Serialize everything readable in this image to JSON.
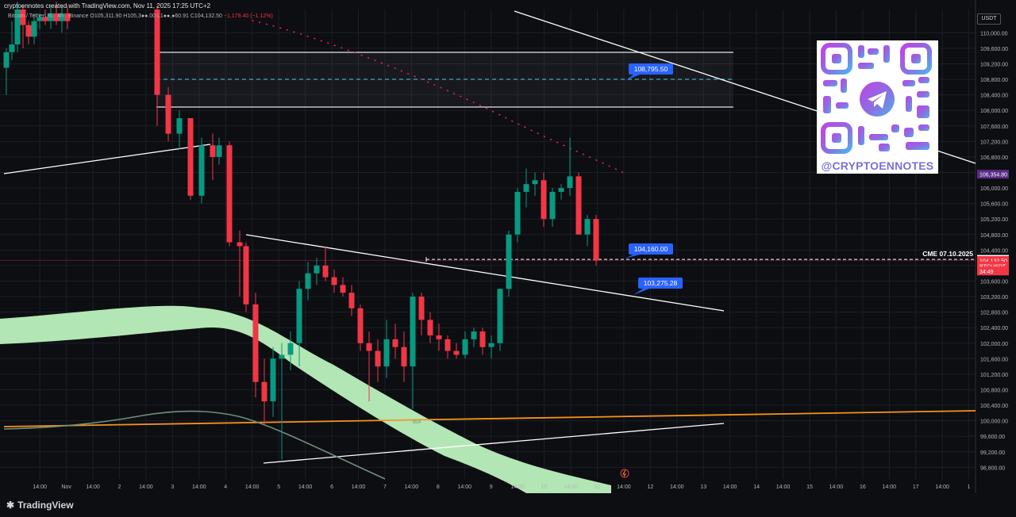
{
  "header": {
    "caption": "cryptoennotes created with TradingView.com, Nov 11, 2025 17:25 UTC+2",
    "symbol_line": "Bitcoin / TetherUS · 4h · Binance",
    "ohlc_text": "O105,311.90 H105,3●●.00 L1●●,●60.91 C104,132.50",
    "change_text": "−1,179.40 (−1.12%)",
    "currency": "USDT"
  },
  "footer": {
    "brand": "TradingView",
    "brand_icon": "tradingview-logo-icon"
  },
  "watermark": {
    "text": "@CRYPTOENNOTES",
    "kind": "qr-code-telegram-logo"
  },
  "annotations": {
    "label_upper": "108,795.50",
    "label_current": "104,160.00",
    "label_lower": "103,275.28",
    "cme_text": "CME 07.10.2025",
    "bull_text": "Bull"
  },
  "colors": {
    "up": "#089981",
    "down": "#f23645",
    "grid": "#1c1f27",
    "cloud": "#b3e6b5",
    "orange": "#f7931a",
    "dotted": "#e91e63",
    "label_blue": "#2962ff",
    "purple_badge": "#5b2c86"
  },
  "chart_data": {
    "type": "candlestick",
    "title": "Bitcoin / TetherUS · 4h · Binance",
    "y_range": [
      98500,
      110600
    ],
    "y_ticks": [
      110000,
      109600,
      109200,
      108800,
      108400,
      108000,
      107600,
      107200,
      106800,
      106400,
      106000,
      105600,
      105200,
      104800,
      104400,
      104000,
      103600,
      103200,
      102800,
      102400,
      102000,
      101600,
      101200,
      100800,
      100400,
      100000,
      99600,
      99200,
      98800
    ],
    "price_badges": [
      {
        "label": "106,354.80",
        "value": 106354.8,
        "color": "#5b2c86"
      },
      {
        "label": "104,160.00",
        "value": 104160,
        "color": "#ffffff"
      },
      {
        "label": "104,132.50",
        "value": 104132.5,
        "color": "#f23645"
      },
      {
        "label": "BTCUSDT",
        "value": 103990,
        "color": "#f23645"
      },
      {
        "label": "34:49",
        "value": 103860,
        "color": "#f23645"
      }
    ],
    "x_ticks": [
      {
        "label": "14:00",
        "i": 2
      },
      {
        "label": "Nov",
        "i": 4
      },
      {
        "label": "14:00",
        "i": 6
      },
      {
        "label": "2",
        "i": 8
      },
      {
        "label": "14:00",
        "i": 10
      },
      {
        "label": "3",
        "i": 12
      },
      {
        "label": "14:00",
        "i": 14
      },
      {
        "label": "4",
        "i": 16
      },
      {
        "label": "14:00",
        "i": 18
      },
      {
        "label": "5",
        "i": 20
      },
      {
        "label": "14:00",
        "i": 22
      },
      {
        "label": "6",
        "i": 24
      },
      {
        "label": "14:00",
        "i": 26
      },
      {
        "label": "7",
        "i": 28
      },
      {
        "label": "14:00",
        "i": 30
      },
      {
        "label": "8",
        "i": 32
      },
      {
        "label": "14:00",
        "i": 34
      },
      {
        "label": "9",
        "i": 36
      },
      {
        "label": "14:00",
        "i": 38
      },
      {
        "label": "10",
        "i": 40
      },
      {
        "label": "14:00",
        "i": 42
      },
      {
        "label": "11",
        "i": 44
      },
      {
        "label": "14:00",
        "i": 46
      },
      {
        "label": "12",
        "i": 48
      },
      {
        "label": "14:00",
        "i": 50
      },
      {
        "label": "13",
        "i": 52
      },
      {
        "label": "14:00",
        "i": 54
      },
      {
        "label": "14",
        "i": 56
      },
      {
        "label": "14:00",
        "i": 58
      },
      {
        "label": "15",
        "i": 60
      },
      {
        "label": "14:00",
        "i": 62
      },
      {
        "label": "16",
        "i": 64
      },
      {
        "label": "14:00",
        "i": 66
      },
      {
        "label": "17",
        "i": 68
      },
      {
        "label": "14:00",
        "i": 70
      },
      {
        "label": "1",
        "i": 72
      }
    ],
    "candles": [
      {
        "i": 0,
        "o": 109100,
        "h": 109600,
        "l": 108400,
        "c": 109500
      },
      {
        "i": 1,
        "o": 109500,
        "h": 110300,
        "l": 109300,
        "c": 109700
      },
      {
        "i": 2,
        "o": 109700,
        "h": 110800,
        "l": 109500,
        "c": 110600
      },
      {
        "i": 3,
        "o": 110600,
        "h": 110700,
        "l": 109600,
        "c": 110200
      },
      {
        "i": 4,
        "o": 110200,
        "h": 110300,
        "l": 109700,
        "c": 109900
      },
      {
        "i": 5,
        "o": 109900,
        "h": 110500,
        "l": 109700,
        "c": 110300
      },
      {
        "i": 6,
        "o": 110300,
        "h": 110500,
        "l": 110100,
        "c": 110400
      },
      {
        "i": 7,
        "o": 110400,
        "h": 110600,
        "l": 110200,
        "c": 110300
      },
      {
        "i": 8,
        "o": 110300,
        "h": 110700,
        "l": 110100,
        "c": 110500
      },
      {
        "i": 9,
        "o": 110500,
        "h": 110800,
        "l": 110200,
        "c": 110300
      },
      {
        "i": 10,
        "o": 110300,
        "h": 110700,
        "l": 110000,
        "c": 110500
      },
      {
        "i": 11,
        "o": 110500,
        "h": 110700,
        "l": 110100,
        "c": 110300
      },
      {
        "i": 12,
        "o": 110600,
        "h": 110700,
        "l": 107600,
        "c": 108400
      },
      {
        "i": 13,
        "o": 108400,
        "h": 108600,
        "l": 107200,
        "c": 107400
      },
      {
        "i": 14,
        "o": 107400,
        "h": 108000,
        "l": 107000,
        "c": 107800
      },
      {
        "i": 15,
        "o": 107800,
        "h": 107800,
        "l": 105700,
        "c": 105800
      },
      {
        "i": 16,
        "o": 105800,
        "h": 107300,
        "l": 105600,
        "c": 107100
      },
      {
        "i": 17,
        "o": 107100,
        "h": 107400,
        "l": 106200,
        "c": 106800
      },
      {
        "i": 18,
        "o": 106800,
        "h": 107300,
        "l": 106600,
        "c": 107100
      },
      {
        "i": 19,
        "o": 107100,
        "h": 107200,
        "l": 104500,
        "c": 104600
      },
      {
        "i": 20,
        "o": 104600,
        "h": 104900,
        "l": 103200,
        "c": 104500
      },
      {
        "i": 21,
        "o": 104500,
        "h": 104600,
        "l": 102800,
        "c": 103000
      },
      {
        "i": 22,
        "o": 103000,
        "h": 103300,
        "l": 100600,
        "c": 101000
      },
      {
        "i": 23,
        "o": 101000,
        "h": 101600,
        "l": 99900,
        "c": 100500
      },
      {
        "i": 24,
        "o": 100500,
        "h": 101900,
        "l": 100100,
        "c": 101600
      },
      {
        "i": 25,
        "o": 101600,
        "h": 102000,
        "l": 99000,
        "c": 101700
      },
      {
        "i": 26,
        "o": 101700,
        "h": 102300,
        "l": 101300,
        "c": 102000
      },
      {
        "i": 27,
        "o": 102000,
        "h": 103600,
        "l": 101400,
        "c": 103400
      },
      {
        "i": 28,
        "o": 103400,
        "h": 104100,
        "l": 103100,
        "c": 103800
      },
      {
        "i": 29,
        "o": 103800,
        "h": 104200,
        "l": 103500,
        "c": 104000
      },
      {
        "i": 30,
        "o": 104000,
        "h": 104500,
        "l": 103600,
        "c": 103700
      },
      {
        "i": 31,
        "o": 103700,
        "h": 103900,
        "l": 103300,
        "c": 103500
      },
      {
        "i": 32,
        "o": 103500,
        "h": 103700,
        "l": 103200,
        "c": 103300
      },
      {
        "i": 33,
        "o": 103300,
        "h": 103500,
        "l": 102700,
        "c": 102900
      },
      {
        "i": 34,
        "o": 102900,
        "h": 103000,
        "l": 101800,
        "c": 102000
      },
      {
        "i": 35,
        "o": 102000,
        "h": 102300,
        "l": 100500,
        "c": 101800
      },
      {
        "i": 36,
        "o": 101800,
        "h": 102100,
        "l": 101000,
        "c": 101400
      },
      {
        "i": 37,
        "o": 101400,
        "h": 102600,
        "l": 101100,
        "c": 102100
      },
      {
        "i": 38,
        "o": 102100,
        "h": 102500,
        "l": 101600,
        "c": 101900
      },
      {
        "i": 39,
        "o": 101900,
        "h": 102300,
        "l": 101000,
        "c": 101400
      },
      {
        "i": 40,
        "o": 101400,
        "h": 103300,
        "l": 100300,
        "c": 103200
      },
      {
        "i": 41,
        "o": 103200,
        "h": 103300,
        "l": 102200,
        "c": 102600
      },
      {
        "i": 42,
        "o": 102600,
        "h": 102800,
        "l": 102000,
        "c": 102200
      },
      {
        "i": 43,
        "o": 102200,
        "h": 102500,
        "l": 101800,
        "c": 102100
      },
      {
        "i": 44,
        "o": 102100,
        "h": 102200,
        "l": 101600,
        "c": 101800
      },
      {
        "i": 45,
        "o": 101800,
        "h": 102000,
        "l": 101600,
        "c": 101700
      },
      {
        "i": 46,
        "o": 101700,
        "h": 102300,
        "l": 101600,
        "c": 102100
      },
      {
        "i": 47,
        "o": 102100,
        "h": 102400,
        "l": 101900,
        "c": 102300
      },
      {
        "i": 48,
        "o": 102300,
        "h": 102400,
        "l": 101700,
        "c": 101900
      },
      {
        "i": 49,
        "o": 101900,
        "h": 102200,
        "l": 101600,
        "c": 102000
      },
      {
        "i": 50,
        "o": 102000,
        "h": 103400,
        "l": 101800,
        "c": 103400
      },
      {
        "i": 51,
        "o": 103400,
        "h": 104900,
        "l": 103200,
        "c": 104800
      },
      {
        "i": 52,
        "o": 104800,
        "h": 106000,
        "l": 104600,
        "c": 105900
      },
      {
        "i": 53,
        "o": 105900,
        "h": 106500,
        "l": 105500,
        "c": 106100
      },
      {
        "i": 54,
        "o": 106100,
        "h": 106400,
        "l": 105800,
        "c": 106200
      },
      {
        "i": 55,
        "o": 106200,
        "h": 106400,
        "l": 105000,
        "c": 105200
      },
      {
        "i": 56,
        "o": 105200,
        "h": 106000,
        "l": 105000,
        "c": 105900
      },
      {
        "i": 57,
        "o": 105900,
        "h": 106100,
        "l": 105700,
        "c": 106000
      },
      {
        "i": 58,
        "o": 106000,
        "h": 107300,
        "l": 105800,
        "c": 106300
      },
      {
        "i": 59,
        "o": 106300,
        "h": 106400,
        "l": 104800,
        "c": 104800
      },
      {
        "i": 60,
        "o": 104800,
        "h": 105300,
        "l": 104500,
        "c": 105200
      },
      {
        "i": 61,
        "o": 105200,
        "h": 105300,
        "l": 104000,
        "c": 104130
      }
    ],
    "candle_index_range": [
      -1,
      72.5
    ],
    "candle_x_override": [
      [
        0,
        8
      ],
      [
        1,
        15
      ],
      [
        2,
        22
      ],
      [
        3,
        29
      ],
      [
        4,
        36
      ],
      [
        5,
        43
      ],
      [
        6,
        50
      ],
      [
        7,
        57
      ],
      [
        8,
        64
      ],
      [
        9,
        71
      ],
      [
        10,
        78
      ],
      [
        11,
        85
      ],
      [
        12,
        198
      ],
      [
        13,
        212
      ],
      [
        14,
        226
      ],
      [
        15,
        240
      ],
      [
        16,
        254
      ],
      [
        17,
        268
      ],
      [
        18,
        276
      ],
      [
        19,
        289
      ],
      [
        20,
        302
      ],
      [
        21,
        310
      ],
      [
        22,
        322
      ],
      [
        23,
        333
      ],
      [
        24,
        344
      ],
      [
        25,
        355
      ],
      [
        26,
        366
      ],
      [
        27,
        377
      ],
      [
        28,
        388
      ],
      [
        29,
        399
      ],
      [
        30,
        410
      ],
      [
        31,
        421
      ],
      [
        32,
        432
      ],
      [
        33,
        443
      ],
      [
        34,
        454
      ],
      [
        35,
        465
      ],
      [
        36,
        476
      ],
      [
        37,
        487
      ],
      [
        38,
        498
      ],
      [
        39,
        509
      ],
      [
        40,
        520
      ],
      [
        41,
        531
      ],
      [
        42,
        542
      ],
      [
        43,
        553
      ],
      [
        44,
        564
      ],
      [
        45,
        575
      ],
      [
        46,
        586
      ],
      [
        47,
        597
      ],
      [
        48,
        608
      ],
      [
        49,
        619
      ],
      [
        50,
        630
      ],
      [
        51,
        641
      ],
      [
        52,
        652
      ],
      [
        53,
        663
      ],
      [
        54,
        674
      ],
      [
        55,
        685
      ],
      [
        56,
        696
      ],
      [
        57,
        707
      ],
      [
        58,
        718
      ],
      [
        59,
        729
      ],
      [
        60,
        740
      ],
      [
        61,
        751
      ]
    ]
  }
}
